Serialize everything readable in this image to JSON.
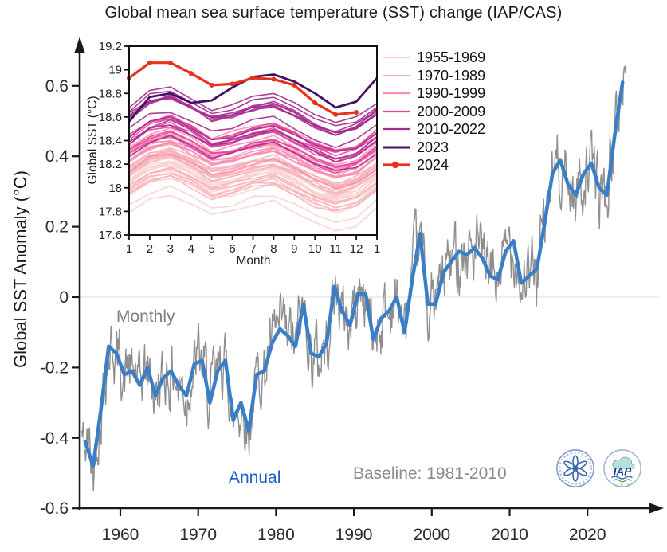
{
  "title": "Global mean sea surface temperature (SST) change (IAP/CAS)",
  "colors": {
    "annual_line": "#3b7ec8",
    "monthly_line": "#8f8f8f",
    "axis": "#1a1a1a",
    "zero_gridline": "#e4e4e4",
    "annual_label": "#1a5fc8",
    "monthly_label": "#7e7e7e",
    "baseline_label": "#8b8b8b"
  },
  "logos": {
    "iap_text": "IAP",
    "iap_sub": "C A S"
  },
  "chart_data": [
    {
      "type": "line",
      "id": "main",
      "ylabel": "Global SST Anomaly (°C)",
      "xlabel": "",
      "xlim": [
        1955,
        2025
      ],
      "ylim": [
        -0.6,
        0.7
      ],
      "xticks": [
        1960,
        1970,
        1980,
        1990,
        2000,
        2010,
        2020
      ],
      "ytick_values": [
        0.6,
        0.4,
        0.2,
        0,
        -0.2,
        -0.4,
        -0.6
      ],
      "ytick_labels": [
        "0.6",
        "0.4",
        "0.2",
        "0",
        "-0.2",
        "-0.4",
        "-0.6"
      ],
      "zero_gridline": true,
      "baseline_note": "Baseline: 1981-2010",
      "series": [
        {
          "name": "Annual",
          "color": "#3b7ec8",
          "start_year": 1955,
          "values": [
            -0.41,
            -0.48,
            -0.32,
            -0.14,
            -0.16,
            -0.22,
            -0.21,
            -0.25,
            -0.2,
            -0.28,
            -0.23,
            -0.21,
            -0.25,
            -0.28,
            -0.19,
            -0.18,
            -0.3,
            -0.21,
            -0.18,
            -0.35,
            -0.3,
            -0.38,
            -0.22,
            -0.21,
            -0.13,
            -0.09,
            -0.11,
            -0.14,
            -0.02,
            -0.16,
            -0.17,
            -0.13,
            0.03,
            -0.04,
            -0.08,
            0.01,
            0.01,
            -0.12,
            -0.06,
            -0.04,
            0.0,
            -0.1,
            0.05,
            0.18,
            -0.02,
            -0.02,
            0.07,
            0.1,
            0.13,
            0.12,
            0.14,
            0.11,
            0.06,
            0.05,
            0.13,
            0.16,
            0.04,
            0.06,
            0.08,
            0.21,
            0.35,
            0.39,
            0.32,
            0.29,
            0.35,
            0.38,
            0.31,
            0.29,
            0.46,
            0.61
          ]
        },
        {
          "name": "Monthly",
          "color": "#8f8f8f",
          "derivation": "annual series interpolated to monthly resolution plus seeded variability (exact monthly values not resolvable from image)",
          "noise": {
            "seed": 42,
            "ar": 0.55,
            "amp": 0.075,
            "seasonal_amp": 0.018
          },
          "clamp": [
            -0.575,
            0.655
          ]
        }
      ]
    },
    {
      "type": "line",
      "id": "inset",
      "ylabel": "Global SST (°C)",
      "xlabel": "Month",
      "xlim": [
        1,
        13
      ],
      "ylim": [
        17.6,
        19.2
      ],
      "xtick_labels": [
        "1",
        "2",
        "3",
        "4",
        "5",
        "6",
        "7",
        "8",
        "9",
        "10",
        "11",
        "12",
        "1"
      ],
      "ytick_values": [
        19.2,
        19,
        18.8,
        18.6,
        18.4,
        18.2,
        18,
        17.8,
        17.6
      ],
      "ytick_labels": [
        "19.2",
        "19",
        "18.8",
        "18.6",
        "18.4",
        "18.2",
        "18",
        "17.8",
        "17.6"
      ],
      "legend": [
        {
          "label": "1955-1969",
          "color": "#fad3d0",
          "year_start": 1955,
          "year_end": 1969,
          "lw": 2.2
        },
        {
          "label": "1970-1989",
          "color": "#f7b3ba",
          "year_start": 1970,
          "year_end": 1989,
          "lw": 2.2
        },
        {
          "label": "1990-1999",
          "color": "#f78cb4",
          "year_start": 1990,
          "year_end": 1999,
          "lw": 2.2
        },
        {
          "label": "2000-2009",
          "color": "#e2499e",
          "year_start": 2000,
          "year_end": 2009,
          "lw": 2.2
        },
        {
          "label": "2010-2022",
          "color": "#a62e90",
          "year_start": 2010,
          "year_end": 2022,
          "lw": 2.2
        },
        {
          "label": "2023",
          "color": "#431266",
          "lw": 3,
          "series_key": "series_2023"
        },
        {
          "label": "2024",
          "color": "#e8321c",
          "lw": 3.2,
          "marker": "circle",
          "series_key": "series_2024"
        }
      ],
      "base_level": 18.3,
      "climatology_offsets": [
        -0.02,
        0.1,
        0.14,
        0.06,
        -0.04,
        -0.01,
        0.05,
        0.08,
        0.0,
        -0.1,
        -0.16,
        -0.11
      ],
      "jitter": {
        "seed": 9,
        "year_amp": 0.045,
        "month_amp": 0.02
      },
      "note": "Decade-group lines are yearly seasonal curves: base_level + annual anomaly + climatology_offsets",
      "series_2023": {
        "label": "2023",
        "color": "#431266",
        "values": [
          18.56,
          18.77,
          18.8,
          18.72,
          18.74,
          18.85,
          18.94,
          18.96,
          18.9,
          18.8,
          18.68,
          18.73,
          18.93
        ]
      },
      "series_2024": {
        "label": "2024",
        "color": "#e8321c",
        "marker": "circle",
        "values": [
          18.93,
          19.06,
          19.06,
          18.97,
          18.87,
          18.88,
          18.93,
          18.92,
          18.87,
          18.72,
          18.62,
          18.64
        ]
      }
    }
  ]
}
